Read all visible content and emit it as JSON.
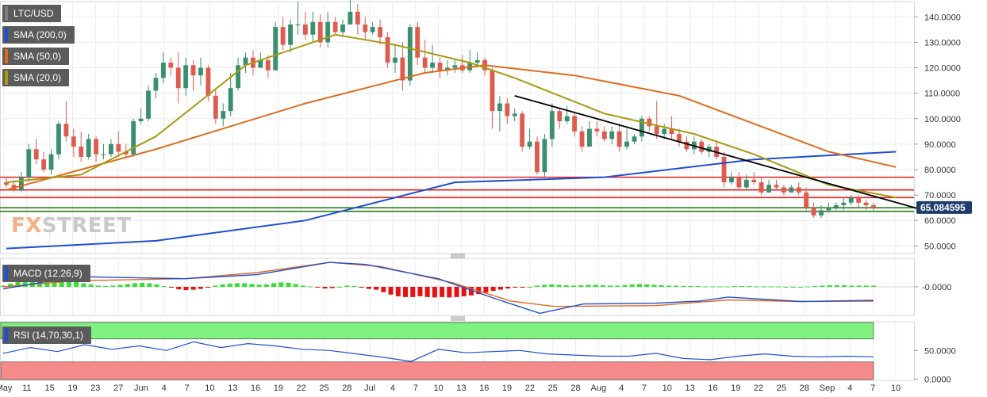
{
  "legend": {
    "pair": "LTC/USD",
    "sma200": "SMA (200,0)",
    "sma50": "SMA (50,0)",
    "sma20": "SMA (20,0)",
    "macd": "MACD (12,26,9)",
    "rsi": "RSI (14,70,30,1)"
  },
  "logo": {
    "fx": "FX",
    "street": "STREET"
  },
  "colors": {
    "up": "#3a8f6f",
    "down": "#dd5c4f",
    "sma200": "#1f4fd6",
    "sma50": "#e06a1c",
    "sma20": "#a89a12",
    "resistance": "#e02020",
    "support": "#2e7d1e",
    "trendline": "#000000",
    "macd_pos": "#33e033",
    "macd_neg": "#e81010",
    "rsi_line": "#1f4fd6",
    "rsi_overbought": "#7ff27f",
    "rsi_oversold": "#f48a8a",
    "price_tag": "#1e3d6b"
  },
  "chart_data": [
    {
      "type": "candlestick",
      "title": "LTC/USD",
      "x_ticks": [
        "May",
        "11",
        "15",
        "19",
        "23",
        "27",
        "Jun",
        "4",
        "7",
        "10",
        "13",
        "16",
        "19",
        "22",
        "25",
        "28",
        "Jul",
        "4",
        "7",
        "10",
        "13",
        "16",
        "19",
        "22",
        "25",
        "28",
        "Aug",
        "4",
        "7",
        "10",
        "13",
        "16",
        "19",
        "22",
        "25",
        "28",
        "Sep",
        "4",
        "7",
        "10"
      ],
      "y_ticks": [
        "50.0000",
        "60.0000",
        "70.0000",
        "80.0000",
        "90.0000",
        "100.0000",
        "110.0000",
        "120.0000",
        "130.0000",
        "140.0000"
      ],
      "ylim": [
        47,
        146
      ],
      "last_price": "65.084595",
      "candles": [
        [
          75,
          74,
          77,
          73
        ],
        [
          74,
          72,
          76,
          71
        ],
        [
          72,
          77,
          79,
          71
        ],
        [
          77,
          88,
          90,
          75
        ],
        [
          88,
          84,
          92,
          82
        ],
        [
          84,
          80,
          87,
          79
        ],
        [
          80,
          86,
          88,
          78
        ],
        [
          86,
          98,
          99,
          84
        ],
        [
          98,
          93,
          107,
          91
        ],
        [
          93,
          89,
          96,
          85
        ],
        [
          89,
          85,
          95,
          83
        ],
        [
          85,
          92,
          94,
          84
        ],
        [
          92,
          86,
          93,
          83
        ],
        [
          86,
          86,
          90,
          84
        ],
        [
          86,
          90,
          92,
          85
        ],
        [
          90,
          87,
          95,
          85
        ],
        [
          87,
          86,
          90,
          85
        ],
        [
          86,
          99,
          100,
          85
        ],
        [
          99,
          100,
          104,
          98
        ],
        [
          100,
          111,
          113,
          99
        ],
        [
          111,
          116,
          118,
          108
        ],
        [
          116,
          122,
          126,
          114
        ],
        [
          122,
          120,
          124,
          117
        ],
        [
          120,
          112,
          126,
          106
        ],
        [
          112,
          121,
          124,
          109
        ],
        [
          121,
          117,
          123,
          111
        ],
        [
          117,
          120,
          124,
          113
        ],
        [
          120,
          109,
          121,
          107
        ],
        [
          109,
          100,
          112,
          98
        ],
        [
          100,
          103,
          106,
          97
        ],
        [
          103,
          112,
          118,
          101
        ],
        [
          112,
          121,
          124,
          111
        ],
        [
          121,
          124,
          126,
          118
        ],
        [
          124,
          120,
          127,
          117
        ],
        [
          120,
          123,
          126,
          120
        ],
        [
          123,
          119,
          125,
          116
        ],
        [
          119,
          136,
          138,
          131
        ],
        [
          136,
          129,
          140,
          127
        ],
        [
          129,
          137,
          139,
          126
        ],
        [
          137,
          137,
          146,
          133
        ],
        [
          137,
          133,
          142,
          131
        ],
        [
          133,
          138,
          142,
          130
        ],
        [
          138,
          130,
          141,
          128
        ],
        [
          130,
          138,
          142,
          128
        ],
        [
          138,
          134,
          140,
          133
        ],
        [
          134,
          137,
          139,
          132
        ],
        [
          137,
          142,
          147,
          140
        ],
        [
          142,
          137,
          145,
          133
        ],
        [
          137,
          134,
          140,
          131
        ],
        [
          134,
          136,
          138,
          133
        ],
        [
          136,
          132,
          139,
          129
        ],
        [
          132,
          122,
          134,
          120
        ],
        [
          122,
          124,
          129,
          118
        ],
        [
          124,
          115,
          130,
          111
        ],
        [
          115,
          136,
          137,
          113
        ],
        [
          136,
          124,
          138,
          121
        ],
        [
          124,
          120,
          131,
          118
        ],
        [
          120,
          122,
          129,
          118
        ],
        [
          122,
          119,
          124,
          116
        ],
        [
          119,
          120,
          123,
          117
        ],
        [
          120,
          121,
          123,
          118
        ],
        [
          121,
          119,
          125,
          118
        ],
        [
          119,
          122,
          127,
          118
        ],
        [
          122,
          123,
          126,
          120
        ],
        [
          123,
          119,
          124,
          117
        ],
        [
          119,
          103,
          120,
          96
        ],
        [
          103,
          106,
          109,
          95
        ],
        [
          106,
          101,
          108,
          98
        ],
        [
          101,
          102,
          104,
          99
        ],
        [
          102,
          89,
          103,
          87
        ],
        [
          89,
          91,
          96,
          88
        ],
        [
          91,
          79,
          93,
          78
        ],
        [
          79,
          92,
          94,
          77
        ],
        [
          92,
          103,
          106,
          89
        ],
        [
          103,
          99,
          104,
          96
        ],
        [
          99,
          101,
          105,
          98
        ],
        [
          101,
          95,
          102,
          93
        ],
        [
          95,
          89,
          97,
          87
        ],
        [
          89,
          96,
          99,
          91
        ],
        [
          96,
          95,
          99,
          93
        ],
        [
          95,
          92,
          97,
          91
        ],
        [
          92,
          95,
          97,
          90
        ],
        [
          95,
          89,
          98,
          87
        ],
        [
          89,
          91,
          96,
          88
        ],
        [
          91,
          93,
          94,
          90
        ],
        [
          93,
          100,
          101,
          91
        ],
        [
          100,
          97,
          101,
          95
        ],
        [
          97,
          94,
          107,
          92
        ],
        [
          94,
          96,
          98,
          92
        ],
        [
          96,
          94,
          101,
          92
        ],
        [
          94,
          91,
          96,
          89
        ],
        [
          91,
          88,
          93,
          87
        ],
        [
          88,
          91,
          93,
          86
        ],
        [
          91,
          87,
          92,
          86
        ],
        [
          87,
          89,
          90,
          85
        ],
        [
          89,
          85,
          91,
          84
        ],
        [
          85,
          75,
          87,
          73
        ],
        [
          75,
          77,
          79,
          74
        ],
        [
          77,
          73,
          79,
          72
        ],
        [
          73,
          76,
          78,
          72
        ],
        [
          76,
          75,
          79,
          74
        ],
        [
          75,
          71,
          77,
          70
        ],
        [
          71,
          74,
          76,
          71
        ],
        [
          74,
          73,
          76,
          72
        ],
        [
          73,
          71,
          74,
          70
        ],
        [
          71,
          73,
          74,
          71
        ],
        [
          73,
          71,
          75,
          70
        ],
        [
          71,
          65,
          73,
          64
        ],
        [
          65,
          62,
          67,
          61
        ],
        [
          62,
          64,
          66,
          61
        ],
        [
          64,
          65,
          67,
          63
        ],
        [
          65,
          66,
          67,
          64
        ],
        [
          66,
          67,
          69,
          64
        ],
        [
          67,
          69,
          70,
          66
        ],
        [
          69,
          67,
          70,
          65
        ],
        [
          67,
          66,
          68,
          64
        ],
        [
          66,
          65,
          67,
          64
        ]
      ],
      "indicators": [
        {
          "name": "SMA (200,0)",
          "points": [
            [
              0,
              49
            ],
            [
              20,
              52
            ],
            [
              40,
              60
            ],
            [
              60,
              75
            ],
            [
              80,
              77
            ],
            [
              100,
              84
            ],
            [
              119,
              87
            ]
          ]
        },
        {
          "name": "SMA (50,0)",
          "points": [
            [
              0,
              72
            ],
            [
              20,
              88
            ],
            [
              40,
              106
            ],
            [
              56,
              118
            ],
            [
              64,
              121
            ],
            [
              76,
              117
            ],
            [
              90,
              109
            ],
            [
              110,
              87
            ],
            [
              119,
              81
            ]
          ]
        },
        {
          "name": "SMA (20,0)",
          "points": [
            [
              0,
              75
            ],
            [
              10,
              78
            ],
            [
              20,
              93
            ],
            [
              32,
              121
            ],
            [
              44,
              133
            ],
            [
              52,
              129
            ],
            [
              62,
              122
            ],
            [
              68,
              116
            ],
            [
              80,
              102
            ],
            [
              92,
              94
            ],
            [
              100,
              86
            ],
            [
              110,
              74
            ],
            [
              119,
              69
            ]
          ]
        }
      ],
      "horizontal_lines": [
        {
          "kind": "resistance",
          "value": 77
        },
        {
          "kind": "resistance",
          "value": 72
        },
        {
          "kind": "resistance",
          "value": 69
        },
        {
          "kind": "support",
          "value": 65
        },
        {
          "kind": "support",
          "value": 63.6
        }
      ],
      "trendline": [
        [
          68,
          109
        ],
        [
          124,
          63
        ]
      ]
    },
    {
      "type": "bar",
      "title": "MACD (12,26,9)",
      "y_ticks": [
        "-0.0000"
      ],
      "ylim": [
        -7,
        7
      ],
      "histogram": [
        0.3,
        0.8,
        1.5,
        2.2,
        2.6,
        2.7,
        2.6,
        2.2,
        1.8,
        1.5,
        1.2,
        0.9,
        0.6,
        0.3,
        0.2,
        0.3,
        0.5,
        0.7,
        0.9,
        1.0,
        0.9,
        0.6,
        0.2,
        -0.2,
        -0.6,
        -0.8,
        -0.7,
        -0.5,
        -0.2,
        0.3,
        0.6,
        0.8,
        0.9,
        0.9,
        0.7,
        0.5,
        0.6,
        0.9,
        1.1,
        1.0,
        0.7,
        0.3,
        0.1,
        -0.2,
        -0.4,
        -0.3,
        0.0,
        0.3,
        0.2,
        -0.2,
        -0.5,
        -0.7,
        -1.3,
        -1.9,
        -2.3,
        -2.5,
        -2.5,
        -2.3,
        -2.5,
        -2.6,
        -2.5,
        -2.6,
        -2.5,
        -2.3,
        -2.1,
        -1.8,
        -1.4,
        -1.0,
        -0.7,
        -0.4,
        -0.2,
        -0.1,
        0.0,
        0.3,
        0.5,
        0.6,
        0.5,
        0.4,
        0.3,
        0.4,
        0.5,
        0.5,
        0.4,
        0.3,
        0.3,
        0.4,
        0.6,
        0.7,
        0.6,
        0.5,
        0.4,
        0.3,
        0.3,
        0.2,
        0.2,
        0.2,
        0.1,
        0.1,
        0.1,
        0.1,
        0.2,
        0.2,
        0.2,
        0.1,
        0.1,
        0.1,
        0.1,
        0.0,
        0.0,
        0.0,
        0.1,
        0.2,
        0.3,
        0.4,
        0.4,
        0.4,
        0.3,
        0.3,
        0.3,
        0.3
      ],
      "macd_line": [
        [
          0,
          -0.5
        ],
        [
          10,
          2.5
        ],
        [
          25,
          2.0
        ],
        [
          35,
          3.0
        ],
        [
          45,
          6.0
        ],
        [
          50,
          5.5
        ],
        [
          60,
          2.0
        ],
        [
          68,
          -3.0
        ],
        [
          74,
          -6.5
        ],
        [
          80,
          -4.2
        ],
        [
          90,
          -4.0
        ],
        [
          96,
          -3.5
        ],
        [
          100,
          -2.5
        ],
        [
          110,
          -3.6
        ],
        [
          120,
          -3.3
        ]
      ],
      "signal_line": [
        [
          0,
          0
        ],
        [
          10,
          1.5
        ],
        [
          25,
          2.0
        ],
        [
          35,
          3.5
        ],
        [
          45,
          6.0
        ],
        [
          52,
          5.0
        ],
        [
          62,
          1.0
        ],
        [
          70,
          -3.5
        ],
        [
          76,
          -4.8
        ],
        [
          90,
          -4.6
        ],
        [
          100,
          -3.2
        ],
        [
          110,
          -3.6
        ],
        [
          120,
          -3.5
        ]
      ]
    },
    {
      "type": "line",
      "title": "RSI (14,70,30,1)",
      "y_ticks": [
        "0.0000",
        "50.0000"
      ],
      "ylim": [
        -2,
        100
      ],
      "overbought": 70,
      "oversold": 30,
      "rsi": [
        [
          0,
          45
        ],
        [
          5,
          55
        ],
        [
          10,
          48
        ],
        [
          15,
          60
        ],
        [
          20,
          52
        ],
        [
          25,
          58
        ],
        [
          30,
          50
        ],
        [
          35,
          65
        ],
        [
          40,
          55
        ],
        [
          45,
          62
        ],
        [
          50,
          58
        ],
        [
          55,
          52
        ],
        [
          60,
          50
        ],
        [
          65,
          44
        ],
        [
          70,
          38
        ],
        [
          75,
          31
        ],
        [
          80,
          52
        ],
        [
          85,
          46
        ],
        [
          90,
          48
        ],
        [
          95,
          50
        ],
        [
          100,
          44
        ],
        [
          105,
          42
        ],
        [
          110,
          40
        ],
        [
          115,
          40
        ],
        [
          120,
          45
        ],
        [
          125,
          36
        ],
        [
          130,
          34
        ],
        [
          135,
          40
        ],
        [
          140,
          44
        ],
        [
          145,
          40
        ],
        [
          150,
          39
        ],
        [
          155,
          40
        ],
        [
          160,
          39
        ]
      ]
    }
  ]
}
